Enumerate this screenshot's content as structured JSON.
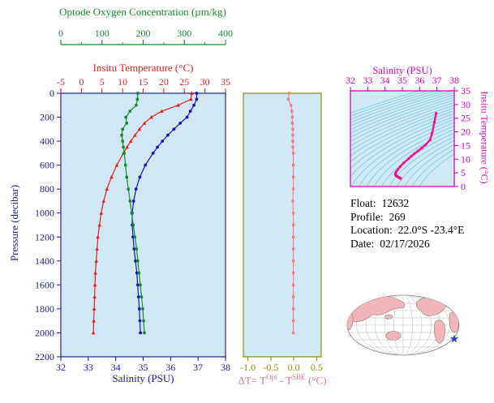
{
  "colors": {
    "panel_bg": "#cfe8f3",
    "frame_main": "#23238c",
    "frame_dt": "#8f8f00",
    "ts": "#dd00cc",
    "ts_curve": "#f01493",
    "contour": "#63c8dc"
  },
  "info": {
    "lines": [
      {
        "label": "Float:",
        "value": "12632"
      },
      {
        "label": "Profile:",
        "value": "269"
      },
      {
        "label": "Location:",
        "value": "22.0°S  -23.4°E"
      },
      {
        "label": "Date:",
        "value": "02/17/2026"
      }
    ]
  },
  "labels": {
    "delta_t": {
      "pre": "ΔT= T",
      "sup1": "Opt",
      "mid": " - T",
      "sup2": "SBE",
      "post": " (°C)"
    }
  },
  "chart_data": [
    {
      "type": "line",
      "name": "pressure-profiles",
      "ylabel": "Pressure (decibar)",
      "ylim": [
        0,
        2200
      ],
      "y_inverted": true,
      "y_ticks": [
        0,
        200,
        400,
        600,
        800,
        1000,
        1200,
        1400,
        1600,
        1800,
        2000,
        2200
      ],
      "pressure": [
        0,
        50,
        100,
        150,
        200,
        250,
        300,
        350,
        400,
        450,
        500,
        600,
        700,
        800,
        900,
        1000,
        1100,
        1200,
        1300,
        1400,
        1500,
        1600,
        1700,
        1800,
        1900,
        2000
      ],
      "axes": [
        {
          "id": "salinity",
          "label": "Salinity (PSU)",
          "position": "bottom",
          "color": "#1414cc",
          "lim": [
            32,
            38
          ],
          "ticks": [
            32,
            33,
            34,
            35,
            36,
            37,
            38
          ]
        },
        {
          "id": "temperature",
          "label": "Insitu Temperature (°C)",
          "position": "top",
          "color": "#e62020",
          "lim": [
            -5,
            35
          ],
          "ticks": [
            -5,
            0,
            5,
            10,
            15,
            20,
            25,
            30,
            35
          ]
        },
        {
          "id": "oxygen",
          "label": "Optode Oxygen Concentration (µm/kg)",
          "position": "top-outer",
          "color": "#188a34",
          "lim": [
            0,
            400
          ],
          "ticks": [
            0,
            100,
            200,
            300,
            400
          ],
          "minor_ticks": [
            50,
            150,
            250,
            350
          ]
        }
      ],
      "series": [
        {
          "name": "Insitu Temperature",
          "axis": "temperature",
          "marker": "triangle",
          "color": "#e62020",
          "values": [
            26.8,
            26.6,
            23.5,
            19.5,
            17.0,
            15.3,
            14.1,
            13.0,
            12.0,
            11.1,
            10.2,
            8.6,
            7.3,
            6.2,
            5.4,
            4.8,
            4.4,
            4.0,
            3.8,
            3.6,
            3.4,
            3.3,
            3.2,
            3.1,
            3.0,
            2.9
          ]
        },
        {
          "name": "Salinity",
          "axis": "salinity",
          "marker": "circle",
          "color": "#1414cc",
          "values": [
            36.95,
            36.95,
            36.85,
            36.72,
            36.6,
            36.35,
            36.12,
            35.9,
            35.7,
            35.52,
            35.36,
            35.08,
            34.88,
            34.74,
            34.65,
            34.6,
            34.6,
            34.63,
            34.67,
            34.72,
            34.77,
            34.8,
            34.83,
            34.86,
            34.88,
            34.9
          ]
        },
        {
          "name": "Optode Oxygen Concentration",
          "axis": "oxygen",
          "marker": "square",
          "color": "#188a34",
          "values": [
            187,
            186,
            183,
            168,
            158,
            160,
            150,
            148,
            150,
            152,
            154,
            157,
            160,
            164,
            168,
            172,
            176,
            180,
            184,
            187,
            190,
            193,
            196,
            199,
            201,
            203
          ]
        }
      ]
    },
    {
      "type": "line",
      "name": "temperature-difference",
      "xlabel": "ΔT= TOpt - TSBE (°C)",
      "xlim": [
        -1.1,
        0.6
      ],
      "ticks": [
        -1.0,
        -0.5,
        0.0,
        0.5
      ],
      "tick_labels": [
        "-1.0",
        "-0.5",
        "0.0",
        "0.5"
      ],
      "series": [
        {
          "name": "delta-t",
          "marker": "square",
          "color": "#f08080",
          "values": [
            -0.1,
            -0.12,
            -0.06,
            -0.04,
            -0.03,
            -0.03,
            -0.02,
            -0.02,
            -0.02,
            -0.02,
            -0.01,
            -0.01,
            -0.01,
            -0.01,
            -0.02,
            -0.01,
            -0.01,
            -0.01,
            -0.01,
            -0.01,
            -0.01,
            -0.01,
            -0.01,
            -0.01,
            -0.01,
            -0.01
          ]
        }
      ]
    },
    {
      "type": "line",
      "name": "t-s-diagram",
      "xlabel": "Salinity (PSU)",
      "ylabel": "Insitu Temperature (°C)",
      "xlim": [
        32,
        38
      ],
      "ylim": [
        0,
        35
      ],
      "x_ticks": [
        32,
        33,
        34,
        35,
        36,
        37,
        38
      ],
      "y_ticks": [
        0,
        5,
        10,
        15,
        20,
        25,
        30,
        35
      ],
      "contours": {
        "variable": "sigma-t isopycnals",
        "color": "#63c8dc",
        "sigma_min": 20.5,
        "sigma_max": 28.9,
        "step": 0.35
      },
      "series": [
        {
          "name": "T-S curve",
          "color": "#f01493",
          "marker": "circle",
          "note": "salinity/temperature pairs taken from profile series in chart_data[0]"
        }
      ]
    }
  ],
  "map": {
    "name": "world-map-mollweide",
    "ocean_color": "#ffffff",
    "land_color": "#f3b5bd",
    "outline_color": "#8a7f66",
    "grid_color": "#b8b8b8",
    "star_color": "#3040c0"
  }
}
